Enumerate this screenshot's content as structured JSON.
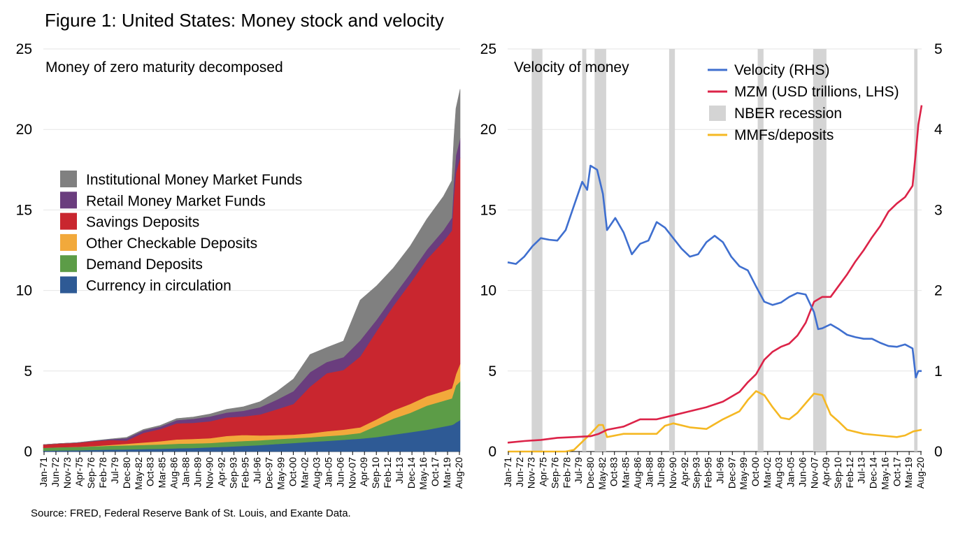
{
  "title": "Figure 1: United States: Money stock and velocity",
  "source": "Source: FRED, Federal Reserve Bank of St. Louis, and Exante Data.",
  "colors": {
    "institutional": "#808080",
    "retail": "#6a3d7e",
    "savings": "#c9262f",
    "checkable": "#f2a93b",
    "demand": "#5c9c47",
    "currency": "#2e5a95",
    "velocity": "#3f6fcf",
    "mzm": "#dc2348",
    "recession": "#d4d4d4",
    "mmf": "#f5b823",
    "gridline": "#e6e6e6"
  },
  "x_ticks": [
    "Jan-71",
    "Jun-72",
    "Nov-73",
    "Apr-75",
    "Sep-76",
    "Feb-78",
    "Jul-79",
    "Dec-80",
    "May-82",
    "Oct-83",
    "Mar-85",
    "Aug-86",
    "Jan-88",
    "Jun-89",
    "Nov-90",
    "Apr-92",
    "Sep-93",
    "Feb-95",
    "Jul-96",
    "Dec-97",
    "May-99",
    "Oct-00",
    "Mar-02",
    "Aug-03",
    "Jan-05",
    "Jun-06",
    "Nov-07",
    "Apr-09",
    "Sep-10",
    "Feb-12",
    "Jul-13",
    "Dec-14",
    "May-16",
    "Oct-17",
    "Mar-19",
    "Aug-20"
  ],
  "chart_data": [
    {
      "type": "area",
      "stacked": true,
      "subtitle": "Money of zero maturity decomposed",
      "ylim": [
        0,
        25
      ],
      "yticks": [
        0,
        5,
        10,
        15,
        20,
        25
      ],
      "grid": true,
      "legend_position": "middle-left",
      "x": [
        1971,
        1973,
        1975,
        1977,
        1979,
        1981,
        1983,
        1985,
        1987,
        1989,
        1991,
        1993,
        1995,
        1997,
        1999,
        2001,
        2003,
        2005,
        2007,
        2009,
        2011,
        2013,
        2015,
        2017,
        2019,
        2020,
        2020.25,
        2020.5,
        2021.0
      ],
      "series": [
        {
          "name": "Currency in circulation",
          "values": [
            0.05,
            0.07,
            0.08,
            0.1,
            0.12,
            0.13,
            0.15,
            0.17,
            0.2,
            0.22,
            0.26,
            0.3,
            0.35,
            0.4,
            0.47,
            0.53,
            0.6,
            0.66,
            0.73,
            0.8,
            0.9,
            1.05,
            1.2,
            1.35,
            1.55,
            1.65,
            1.7,
            1.8,
            1.95
          ]
        },
        {
          "name": "Demand Deposits",
          "values": [
            0.18,
            0.2,
            0.2,
            0.22,
            0.24,
            0.25,
            0.26,
            0.27,
            0.28,
            0.28,
            0.27,
            0.3,
            0.3,
            0.3,
            0.3,
            0.3,
            0.28,
            0.3,
            0.3,
            0.35,
            0.7,
            1.0,
            1.2,
            1.5,
            1.6,
            1.65,
            2.0,
            2.3,
            2.4
          ]
        },
        {
          "name": "Other Checkable Deposits",
          "values": [
            0.0,
            0.0,
            0.01,
            0.02,
            0.05,
            0.1,
            0.15,
            0.2,
            0.27,
            0.28,
            0.3,
            0.37,
            0.38,
            0.3,
            0.25,
            0.22,
            0.25,
            0.3,
            0.33,
            0.35,
            0.4,
            0.5,
            0.55,
            0.58,
            0.6,
            0.62,
            0.65,
            0.7,
            1.1
          ]
        },
        {
          "name": "Savings Deposits",
          "values": [
            0.2,
            0.23,
            0.25,
            0.3,
            0.3,
            0.2,
            0.6,
            0.75,
            1.0,
            1.0,
            1.05,
            1.15,
            1.15,
            1.3,
            1.6,
            1.9,
            2.9,
            3.6,
            3.7,
            4.4,
            5.5,
            6.5,
            7.5,
            8.5,
            9.3,
            9.8,
            11.5,
            12.5,
            12.8
          ]
        },
        {
          "name": "Retail Money Market Funds",
          "values": [
            0.0,
            0.0,
            0.01,
            0.02,
            0.05,
            0.15,
            0.15,
            0.15,
            0.2,
            0.25,
            0.3,
            0.3,
            0.35,
            0.45,
            0.6,
            0.8,
            0.9,
            0.7,
            0.8,
            1.0,
            0.7,
            0.6,
            0.6,
            0.6,
            0.7,
            0.8,
            1.0,
            1.1,
            1.2
          ]
        },
        {
          "name": "Institutional Money Market Funds",
          "values": [
            0.0,
            0.0,
            0.0,
            0.01,
            0.02,
            0.05,
            0.06,
            0.08,
            0.1,
            0.12,
            0.15,
            0.2,
            0.25,
            0.35,
            0.5,
            0.75,
            1.1,
            0.9,
            1.0,
            2.5,
            2.1,
            1.75,
            1.7,
            1.9,
            2.1,
            2.3,
            2.6,
            2.9,
            3.05
          ]
        }
      ]
    },
    {
      "type": "line",
      "subtitle": "Velocity of money",
      "ylim_left": [
        0,
        25
      ],
      "ylim_right": [
        0,
        5
      ],
      "yticks_left": [
        0,
        5,
        10,
        15,
        20,
        25
      ],
      "yticks_right": [
        0,
        1,
        2,
        3,
        4,
        5
      ],
      "grid": true,
      "legend_position": "top-right",
      "recessions": [
        [
          1973.9,
          1975.2
        ],
        [
          1980.0,
          1980.5
        ],
        [
          1981.5,
          1982.9
        ],
        [
          1990.5,
          1991.2
        ],
        [
          2001.2,
          2001.9
        ],
        [
          2007.9,
          2009.5
        ],
        [
          2020.1,
          2020.5
        ]
      ],
      "series": [
        {
          "name": "Velocity (RHS)",
          "axis": "right",
          "x": [
            1971,
            1972,
            1973,
            1974,
            1975,
            1976,
            1977,
            1978,
            1979,
            1980,
            1980.6,
            1981,
            1981.8,
            1982.5,
            1983,
            1984,
            1985,
            1986,
            1987,
            1988,
            1989,
            1990,
            1991,
            1992,
            1993,
            1994,
            1995,
            1996,
            1997,
            1998,
            1999,
            2000,
            2001,
            2002,
            2003,
            2004,
            2005,
            2006,
            2007,
            2008,
            2008.5,
            2009,
            2010,
            2011,
            2012,
            2013,
            2014,
            2015,
            2016,
            2017,
            2018,
            2019,
            2019.9,
            2020.3,
            2020.6,
            2021.0
          ],
          "values": [
            2.35,
            2.33,
            2.42,
            2.55,
            2.65,
            2.63,
            2.62,
            2.75,
            3.05,
            3.35,
            3.25,
            3.55,
            3.5,
            3.2,
            2.75,
            2.9,
            2.72,
            2.45,
            2.58,
            2.62,
            2.85,
            2.78,
            2.65,
            2.52,
            2.42,
            2.45,
            2.6,
            2.68,
            2.6,
            2.42,
            2.3,
            2.25,
            2.05,
            1.86,
            1.82,
            1.85,
            1.92,
            1.97,
            1.95,
            1.73,
            1.52,
            1.53,
            1.58,
            1.52,
            1.45,
            1.42,
            1.4,
            1.4,
            1.35,
            1.31,
            1.3,
            1.33,
            1.28,
            0.92,
            1.0,
            1.0
          ]
        },
        {
          "name": "MZM (USD trillions, LHS)",
          "axis": "left",
          "x": [
            1971,
            1973,
            1975,
            1977,
            1979,
            1981,
            1982,
            1983,
            1985,
            1987,
            1989,
            1991,
            1993,
            1995,
            1997,
            1999,
            2000,
            2001,
            2002,
            2003,
            2004,
            2005,
            2006,
            2007,
            2008,
            2009,
            2010,
            2011,
            2012,
            2013,
            2014,
            2015,
            2016,
            2017,
            2018,
            2019,
            2019.9,
            2020.3,
            2020.6,
            2021.0
          ],
          "values": [
            0.55,
            0.65,
            0.72,
            0.85,
            0.9,
            0.95,
            1.1,
            1.35,
            1.55,
            2.0,
            2.0,
            2.25,
            2.5,
            2.75,
            3.1,
            3.7,
            4.3,
            4.8,
            5.7,
            6.2,
            6.5,
            6.7,
            7.2,
            8.0,
            9.3,
            9.6,
            9.6,
            10.3,
            11.0,
            11.8,
            12.5,
            13.3,
            14.0,
            14.9,
            15.4,
            15.8,
            16.5,
            18.6,
            20.3,
            21.5
          ]
        },
        {
          "name": "MMFs/deposits",
          "axis": "right",
          "x": [
            1971,
            1975,
            1978,
            1979,
            1980,
            1981,
            1982,
            1982.5,
            1983,
            1985,
            1987,
            1989,
            1990,
            1991,
            1993,
            1995,
            1997,
            1999,
            2000,
            2001,
            2002,
            2003,
            2004,
            2005,
            2006,
            2007,
            2008,
            2009,
            2010,
            2011,
            2012,
            2014,
            2016,
            2018,
            2019,
            2020,
            2021.0
          ],
          "values": [
            0.0,
            0.0,
            0.0,
            0.02,
            0.12,
            0.22,
            0.33,
            0.33,
            0.18,
            0.22,
            0.22,
            0.22,
            0.32,
            0.35,
            0.3,
            0.28,
            0.4,
            0.5,
            0.64,
            0.75,
            0.7,
            0.55,
            0.42,
            0.4,
            0.48,
            0.6,
            0.72,
            0.7,
            0.46,
            0.37,
            0.27,
            0.22,
            0.2,
            0.18,
            0.2,
            0.25,
            0.27
          ]
        }
      ]
    }
  ]
}
